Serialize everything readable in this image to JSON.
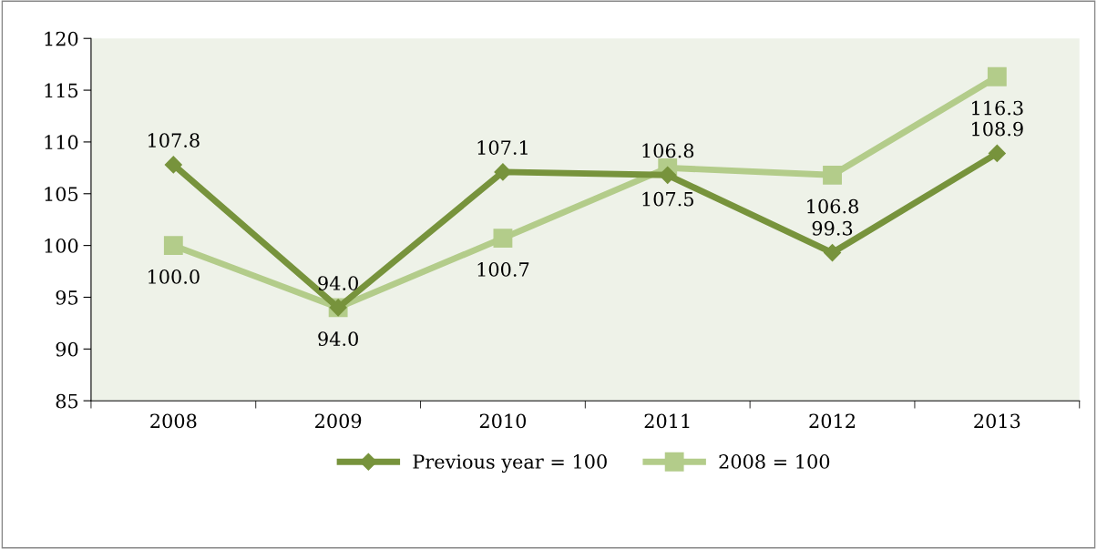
{
  "chart_data": {
    "type": "line",
    "categories": [
      "2008",
      "2009",
      "2010",
      "2011",
      "2012",
      "2013"
    ],
    "series": [
      {
        "name": "Previous year = 100",
        "color": "#77933c",
        "marker": "diamond",
        "values": [
          107.8,
          94.0,
          107.1,
          106.8,
          99.3,
          108.9
        ],
        "value_labels": [
          "107.8",
          "94.0",
          "107.1",
          "106.8",
          "99.3",
          "108.9"
        ]
      },
      {
        "name": "2008 = 100",
        "color": "#b3cc8a",
        "marker": "square",
        "values": [
          100.0,
          94.0,
          100.7,
          107.5,
          106.8,
          116.3
        ],
        "value_labels": [
          "100.0",
          "94.0",
          "100.7",
          "107.5",
          "106.8",
          "116.3"
        ]
      }
    ],
    "ylim": [
      85,
      120
    ],
    "yticks": [
      85,
      90,
      95,
      100,
      105,
      110,
      115,
      120
    ],
    "grid": false,
    "legend": "bottom"
  }
}
